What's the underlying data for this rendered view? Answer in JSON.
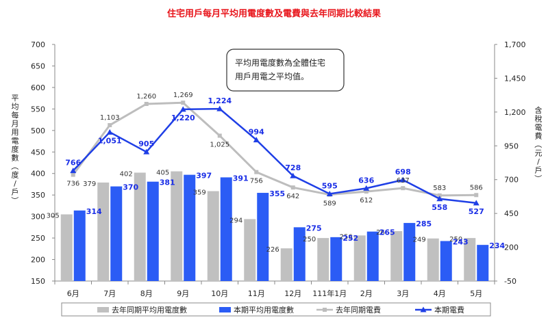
{
  "chart_data": {
    "type": "bar",
    "title": "住宅用戶每月平均用電度數及電費與去年同期比較結果",
    "ylabel": "平均每月用電度數（度/戶）",
    "y2label": "含稅電費（元/戶）",
    "ylim": [
      150,
      700
    ],
    "y_ticks": [
      "150",
      "200",
      "250",
      "300",
      "350",
      "400",
      "450",
      "500",
      "550",
      "600",
      "650",
      "700"
    ],
    "y2lim": [
      -50,
      1700
    ],
    "y2_ticks": [
      "-50",
      "200",
      "450",
      "700",
      "950",
      "1,200",
      "1,450",
      "1,700"
    ],
    "categories": [
      "6月",
      "7月",
      "8月",
      "9月",
      "10月",
      "11月",
      "12月",
      "111年1月",
      "2月",
      "3月",
      "4月",
      "5月"
    ],
    "series": [
      {
        "name": "去年同期平均用電度數",
        "kind": "bar",
        "axis": "left",
        "color": "#c0c0c0",
        "values": [
          305,
          379,
          402,
          405,
          359,
          294,
          226,
          250,
          256,
          266,
          249,
          250
        ],
        "labels": [
          "305",
          "379",
          "402",
          "405",
          "359",
          "294",
          "226",
          "250",
          "256",
          "266",
          "249",
          "250"
        ]
      },
      {
        "name": "本期平均用電度數",
        "kind": "bar",
        "axis": "left",
        "color": "#2b5cf5",
        "values": [
          314,
          370,
          381,
          397,
          391,
          355,
          275,
          252,
          265,
          285,
          243,
          234
        ],
        "labels": [
          "314",
          "370",
          "381",
          "397",
          "391",
          "355",
          "275",
          "252",
          "265",
          "285",
          "243",
          "234"
        ]
      },
      {
        "name": "去年同期電費",
        "kind": "line",
        "axis": "right",
        "color": "#bdbdbd",
        "values": [
          736,
          1103,
          1260,
          1269,
          1025,
          756,
          642,
          589,
          612,
          637,
          583,
          586
        ],
        "labels": [
          "736",
          "1,103",
          "1,260",
          "1,269",
          "1,025",
          "756",
          "642",
          "589",
          "612",
          "637",
          "583",
          "586"
        ]
      },
      {
        "name": "本期電費",
        "kind": "line",
        "axis": "right",
        "color": "#1f3fe6",
        "values": [
          766,
          1051,
          905,
          1220,
          1224,
          994,
          728,
          595,
          636,
          698,
          558,
          527
        ],
        "labels": [
          "766",
          "1,051",
          "905",
          "1,220",
          "1,224",
          "994",
          "728",
          "595",
          "636",
          "698",
          "558",
          "527"
        ]
      }
    ],
    "annotation": [
      "平均用電度數為全體住宅",
      "用戶用電之平均值。"
    ],
    "grid": false,
    "legend": "bottom"
  }
}
